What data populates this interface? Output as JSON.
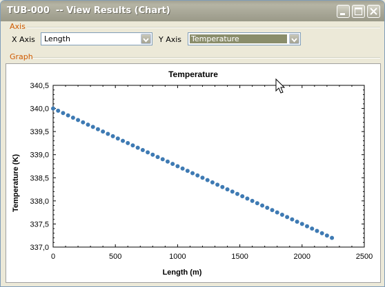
{
  "window": {
    "title": "TUB-000  -- View Results (Chart)"
  },
  "axis_group": {
    "label": "Axis",
    "x_label": "X Axis",
    "x_value": "Length",
    "y_label": "Y Axis",
    "y_value": "Temperature"
  },
  "graph_group": {
    "label": "Graph"
  },
  "chart_data": {
    "type": "scatter",
    "title": "Temperature",
    "xlabel": "Length (m)",
    "ylabel": "Temperature (K)",
    "xlim": [
      0,
      2500
    ],
    "ylim": [
      337.0,
      340.5
    ],
    "xticks": [
      0,
      500,
      1000,
      1500,
      2000,
      2500
    ],
    "xtick_labels": [
      "0",
      "500",
      "1000",
      "1500",
      "2000",
      "2500"
    ],
    "yticks": [
      337.0,
      337.5,
      338.0,
      338.5,
      339.0,
      339.5,
      340.0,
      340.5
    ],
    "ytick_labels": [
      "337,0",
      "337,5",
      "338,0",
      "338,5",
      "339,0",
      "339,5",
      "340,0",
      "340,5"
    ],
    "series": [
      {
        "color": "#3e7ab3",
        "x": [
          0,
          40,
          80,
          120,
          160,
          200,
          240,
          280,
          320,
          360,
          400,
          440,
          480,
          520,
          560,
          600,
          640,
          680,
          720,
          760,
          800,
          840,
          880,
          920,
          960,
          1000,
          1040,
          1080,
          1120,
          1160,
          1200,
          1240,
          1280,
          1320,
          1360,
          1400,
          1440,
          1480,
          1520,
          1560,
          1600,
          1640,
          1680,
          1720,
          1760,
          1800,
          1840,
          1880,
          1920,
          1960,
          2000,
          2040,
          2080,
          2120,
          2160,
          2200,
          2240
        ],
        "y": [
          340.0,
          339.95,
          339.9,
          339.85,
          339.8,
          339.75,
          339.7,
          339.65,
          339.6,
          339.55,
          339.5,
          339.45,
          339.4,
          339.35,
          339.3,
          339.25,
          339.2,
          339.15,
          339.1,
          339.05,
          339.0,
          338.95,
          338.9,
          338.85,
          338.8,
          338.75,
          338.7,
          338.65,
          338.6,
          338.55,
          338.5,
          338.45,
          338.4,
          338.35,
          338.3,
          338.25,
          338.2,
          338.15,
          338.1,
          338.05,
          338.0,
          337.95,
          337.9,
          337.85,
          337.8,
          337.75,
          337.7,
          337.65,
          337.6,
          337.55,
          337.5,
          337.45,
          337.4,
          337.35,
          337.3,
          337.25,
          337.2
        ]
      }
    ]
  }
}
